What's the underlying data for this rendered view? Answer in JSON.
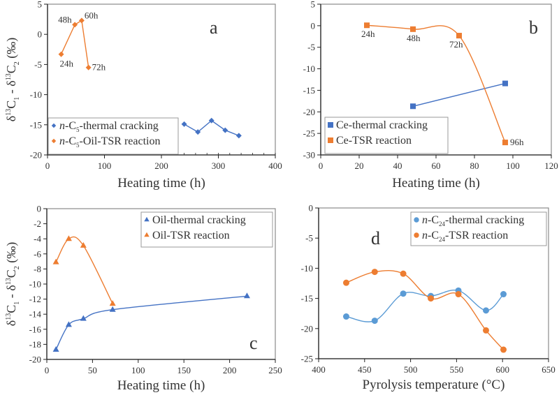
{
  "figure": {
    "y_axis_label_parts": [
      "δ",
      "13",
      "C",
      "1",
      " - δ",
      "13",
      "C",
      "2",
      " (‰)"
    ]
  },
  "chart_data": [
    {
      "panel": "a",
      "type": "line",
      "xlabel": "Heating time (h)",
      "ylabel": "δ13C1 - δ13C2 (‰)",
      "xlim": [
        0,
        400
      ],
      "ylim": [
        -20,
        5
      ],
      "xticks": [
        0,
        100,
        200,
        300,
        400
      ],
      "yticks": [
        -20,
        -15,
        -10,
        -5,
        0,
        5
      ],
      "x_minor_ticks": true,
      "grid": false,
      "legend_position": "bottom-left",
      "smooth": false,
      "marker": "diamond",
      "series": [
        {
          "name": "n-C5-thermal cracking",
          "legend_parts": [
            "n",
            "-C",
            "5",
            "-thermal cracking"
          ],
          "color": "#4472c4",
          "x": [
            240,
            264,
            288,
            312,
            336
          ],
          "y": [
            -14.9,
            -16.2,
            -14.3,
            -15.9,
            -16.8
          ],
          "point_labels": []
        },
        {
          "name": "n-C5-Oil-TSR reaction",
          "legend_parts": [
            "n",
            "-C",
            "5",
            "-Oil-TSR reaction"
          ],
          "color": "#ed7d31",
          "x": [
            24,
            48,
            60,
            72
          ],
          "y": [
            -3.3,
            1.6,
            2.3,
            -5.5
          ],
          "point_labels": [
            "24h",
            "48h",
            "60h",
            "72h"
          ]
        }
      ]
    },
    {
      "panel": "b",
      "type": "line",
      "xlabel": "Heating time (h)",
      "ylabel": "",
      "xlim": [
        0,
        120
      ],
      "ylim": [
        -30,
        5
      ],
      "xticks": [
        0,
        20,
        40,
        60,
        80,
        100,
        120
      ],
      "yticks": [
        -30,
        -25,
        -20,
        -15,
        -10,
        -5,
        0,
        5
      ],
      "grid": false,
      "legend_position": "bottom-left",
      "marker": "square",
      "series": [
        {
          "name": "Ce-thermal cracking",
          "legend_parts": [
            "",
            "Ce-thermal cracking",
            "",
            ""
          ],
          "color": "#4472c4",
          "smooth": false,
          "x": [
            48,
            96
          ],
          "y": [
            -18.7,
            -13.4
          ],
          "point_labels": []
        },
        {
          "name": "Ce-TSR reaction",
          "legend_parts": [
            "",
            "Ce-TSR reaction",
            "",
            ""
          ],
          "color": "#ed7d31",
          "smooth": true,
          "x": [
            24,
            48,
            72,
            96
          ],
          "y": [
            0.1,
            -0.8,
            -2.3,
            -27.1
          ],
          "point_labels": [
            "24h",
            "48h",
            "72h",
            "96h"
          ]
        }
      ]
    },
    {
      "panel": "c",
      "type": "line",
      "xlabel": "Heating time (h)",
      "ylabel": "δ13C1 - δ13C2 (‰)",
      "xlim": [
        0,
        250
      ],
      "ylim": [
        -20,
        0
      ],
      "xticks": [
        0,
        50,
        100,
        150,
        200,
        250
      ],
      "yticks": [
        -20,
        -18,
        -16,
        -14,
        -12,
        -10,
        -8,
        -6,
        -4,
        -2,
        0
      ],
      "grid": false,
      "legend_position": "top-right",
      "marker": "triangle",
      "series": [
        {
          "name": "Oil-thermal cracking",
          "legend_parts": [
            "",
            "Oil-thermal cracking",
            "",
            ""
          ],
          "color": "#4472c4",
          "smooth": true,
          "x": [
            10,
            24,
            40,
            72,
            219
          ],
          "y": [
            -18.7,
            -15.4,
            -14.6,
            -13.4,
            -11.6
          ],
          "point_labels": []
        },
        {
          "name": "Oil-TSR reaction",
          "legend_parts": [
            "",
            "Oil-TSR reaction",
            "",
            ""
          ],
          "color": "#ed7d31",
          "smooth": true,
          "x": [
            10,
            24,
            40,
            72
          ],
          "y": [
            -7.1,
            -4.0,
            -4.9,
            -12.6
          ],
          "point_labels": []
        }
      ]
    },
    {
      "panel": "d",
      "type": "line",
      "xlabel": "Pyrolysis temperature (°C)",
      "ylabel": "",
      "xlim": [
        400,
        650
      ],
      "ylim": [
        -25,
        0
      ],
      "xticks": [
        400,
        450,
        500,
        550,
        600,
        650
      ],
      "yticks": [
        -25,
        -20,
        -15,
        -10,
        -5,
        0
      ],
      "grid": false,
      "legend_position": "top-right",
      "marker": "circle",
      "series": [
        {
          "name": "n-C24-thermal cracking",
          "legend_parts": [
            "n",
            "-C",
            "24",
            "-thermal cracking"
          ],
          "color": "#5b9bd5",
          "smooth": true,
          "x": [
            430,
            461,
            492,
            522,
            552,
            582,
            601
          ],
          "y": [
            -18.0,
            -18.7,
            -14.2,
            -14.6,
            -13.7,
            -17.0,
            -14.3
          ],
          "point_labels": []
        },
        {
          "name": "n-C24-TSR reaction",
          "legend_parts": [
            "n",
            "-C",
            "24",
            "-TSR reaction"
          ],
          "color": "#ed7d31",
          "smooth": true,
          "x": [
            430,
            461,
            492,
            522,
            552,
            582,
            601
          ],
          "y": [
            -12.4,
            -10.6,
            -10.9,
            -15.0,
            -14.3,
            -20.3,
            -23.5
          ],
          "point_labels": []
        }
      ]
    }
  ]
}
